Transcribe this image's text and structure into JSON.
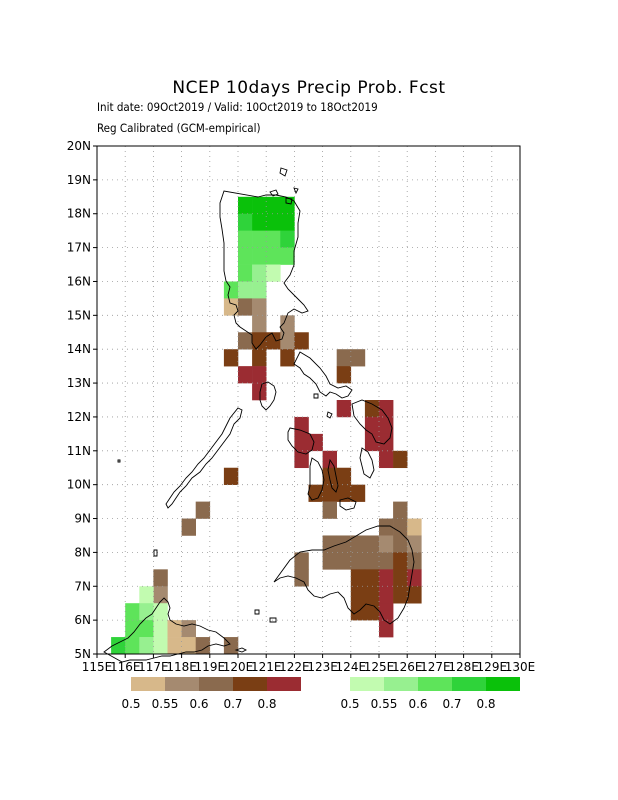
{
  "title": "NCEP 10days Precip Prob. Fcst",
  "subtitle_1": "Init date: 09Oct2019 / Valid: 10Oct2019 to 18Oct2019",
  "subtitle_2": "Reg Calibrated (GCM-empirical)",
  "axes": {
    "x_ticks": [
      "115E",
      "116E",
      "117E",
      "118E",
      "119E",
      "120E",
      "121E",
      "122E",
      "123E",
      "124E",
      "125E",
      "126E",
      "127E",
      "128E",
      "129E",
      "130E"
    ],
    "y_ticks": [
      "5N",
      "6N",
      "7N",
      "8N",
      "9N",
      "10N",
      "11N",
      "12N",
      "13N",
      "14N",
      "15N",
      "16N",
      "17N",
      "18N",
      "19N",
      "20N"
    ],
    "lon_range": [
      115,
      130
    ],
    "lat_range": [
      5,
      20
    ],
    "grid": "dotted"
  },
  "legend": {
    "dry": {
      "colors": [
        "#d7b88a",
        "#a58a70",
        "#8a6a4e",
        "#7a3e14",
        "#9b2c32"
      ],
      "labels": [
        "0.5",
        "0.55",
        "0.6",
        "0.7",
        "0.8"
      ]
    },
    "wet": {
      "colors": [
        "#c2fbb0",
        "#97f090",
        "#5ee45a",
        "#2fd33a",
        "#0ac10a"
      ],
      "labels": [
        "0.5",
        "0.55",
        "0.6",
        "0.7",
        "0.8"
      ]
    }
  },
  "cells": [
    {
      "lon": 120.0,
      "lat": 18.0,
      "cat": "w5"
    },
    {
      "lon": 120.5,
      "lat": 18.0,
      "cat": "w5"
    },
    {
      "lon": 121.0,
      "lat": 18.0,
      "cat": "w5"
    },
    {
      "lon": 121.5,
      "lat": 18.0,
      "cat": "w5"
    },
    {
      "lon": 120.0,
      "lat": 17.5,
      "cat": "w4"
    },
    {
      "lon": 120.5,
      "lat": 17.5,
      "cat": "w5"
    },
    {
      "lon": 121.0,
      "lat": 17.5,
      "cat": "w5"
    },
    {
      "lon": 121.5,
      "lat": 17.5,
      "cat": "w5"
    },
    {
      "lon": 120.0,
      "lat": 17.0,
      "cat": "w3"
    },
    {
      "lon": 120.5,
      "lat": 17.0,
      "cat": "w3"
    },
    {
      "lon": 121.0,
      "lat": 17.0,
      "cat": "w3"
    },
    {
      "lon": 121.5,
      "lat": 17.0,
      "cat": "w4"
    },
    {
      "lon": 120.0,
      "lat": 16.5,
      "cat": "w3"
    },
    {
      "lon": 120.5,
      "lat": 16.5,
      "cat": "w3"
    },
    {
      "lon": 121.0,
      "lat": 16.5,
      "cat": "w3"
    },
    {
      "lon": 121.5,
      "lat": 16.5,
      "cat": "w3"
    },
    {
      "lon": 120.0,
      "lat": 16.0,
      "cat": "w3"
    },
    {
      "lon": 120.5,
      "lat": 16.0,
      "cat": "w2"
    },
    {
      "lon": 121.0,
      "lat": 16.0,
      "cat": "w1"
    },
    {
      "lon": 119.5,
      "lat": 15.5,
      "cat": "w3"
    },
    {
      "lon": 120.0,
      "lat": 15.5,
      "cat": "w2"
    },
    {
      "lon": 120.5,
      "lat": 15.5,
      "cat": "w2"
    },
    {
      "lon": 119.5,
      "lat": 15.0,
      "cat": "d1"
    },
    {
      "lon": 120.0,
      "lat": 15.0,
      "cat": "d3"
    },
    {
      "lon": 120.5,
      "lat": 15.0,
      "cat": "d2"
    },
    {
      "lon": 120.5,
      "lat": 14.5,
      "cat": "d2"
    },
    {
      "lon": 121.5,
      "lat": 14.5,
      "cat": "d2"
    },
    {
      "lon": 120.0,
      "lat": 14.0,
      "cat": "d3"
    },
    {
      "lon": 120.5,
      "lat": 14.0,
      "cat": "d4"
    },
    {
      "lon": 121.0,
      "lat": 14.0,
      "cat": "d4"
    },
    {
      "lon": 121.5,
      "lat": 14.0,
      "cat": "d2"
    },
    {
      "lon": 122.0,
      "lat": 14.0,
      "cat": "d4"
    },
    {
      "lon": 119.5,
      "lat": 13.5,
      "cat": "d4"
    },
    {
      "lon": 120.5,
      "lat": 13.5,
      "cat": "d4"
    },
    {
      "lon": 121.5,
      "lat": 13.5,
      "cat": "d4"
    },
    {
      "lon": 123.5,
      "lat": 13.5,
      "cat": "d3"
    },
    {
      "lon": 124.0,
      "lat": 13.5,
      "cat": "d3"
    },
    {
      "lon": 120.0,
      "lat": 13.0,
      "cat": "d5"
    },
    {
      "lon": 120.5,
      "lat": 13.0,
      "cat": "d5"
    },
    {
      "lon": 123.5,
      "lat": 13.0,
      "cat": "d4"
    },
    {
      "lon": 120.5,
      "lat": 12.5,
      "cat": "d5"
    },
    {
      "lon": 123.5,
      "lat": 12.0,
      "cat": "d5"
    },
    {
      "lon": 124.5,
      "lat": 12.0,
      "cat": "d4"
    },
    {
      "lon": 125.0,
      "lat": 12.0,
      "cat": "d5"
    },
    {
      "lon": 122.0,
      "lat": 11.5,
      "cat": "d5"
    },
    {
      "lon": 124.5,
      "lat": 11.5,
      "cat": "d5"
    },
    {
      "lon": 125.0,
      "lat": 11.5,
      "cat": "d5"
    },
    {
      "lon": 122.0,
      "lat": 11.0,
      "cat": "d5"
    },
    {
      "lon": 122.5,
      "lat": 11.0,
      "cat": "d5"
    },
    {
      "lon": 124.5,
      "lat": 11.0,
      "cat": "d5"
    },
    {
      "lon": 125.0,
      "lat": 11.0,
      "cat": "d5"
    },
    {
      "lon": 122.0,
      "lat": 10.5,
      "cat": "d5"
    },
    {
      "lon": 123.0,
      "lat": 10.5,
      "cat": "d5"
    },
    {
      "lon": 125.0,
      "lat": 10.5,
      "cat": "d5"
    },
    {
      "lon": 125.5,
      "lat": 10.5,
      "cat": "d4"
    },
    {
      "lon": 123.0,
      "lat": 10.0,
      "cat": "d4"
    },
    {
      "lon": 123.5,
      "lat": 10.0,
      "cat": "d4"
    },
    {
      "lon": 119.5,
      "lat": 10.0,
      "cat": "d4"
    },
    {
      "lon": 122.5,
      "lat": 9.5,
      "cat": "d4"
    },
    {
      "lon": 123.0,
      "lat": 9.5,
      "cat": "d4"
    },
    {
      "lon": 123.5,
      "lat": 9.5,
      "cat": "d4"
    },
    {
      "lon": 124.0,
      "lat": 9.5,
      "cat": "d4"
    },
    {
      "lon": 118.5,
      "lat": 9.0,
      "cat": "d3"
    },
    {
      "lon": 123.0,
      "lat": 9.0,
      "cat": "d3"
    },
    {
      "lon": 125.5,
      "lat": 9.0,
      "cat": "d3"
    },
    {
      "lon": 118.0,
      "lat": 8.5,
      "cat": "d3"
    },
    {
      "lon": 125.0,
      "lat": 8.5,
      "cat": "d3"
    },
    {
      "lon": 125.5,
      "lat": 8.5,
      "cat": "d3"
    },
    {
      "lon": 126.0,
      "lat": 8.5,
      "cat": "d1"
    },
    {
      "lon": 123.0,
      "lat": 8.0,
      "cat": "d3"
    },
    {
      "lon": 123.5,
      "lat": 8.0,
      "cat": "d3"
    },
    {
      "lon": 124.0,
      "lat": 8.0,
      "cat": "d3"
    },
    {
      "lon": 124.5,
      "lat": 8.0,
      "cat": "d3"
    },
    {
      "lon": 125.0,
      "lat": 8.0,
      "cat": "d2"
    },
    {
      "lon": 125.5,
      "lat": 8.0,
      "cat": "d3"
    },
    {
      "lon": 126.0,
      "lat": 8.0,
      "cat": "d2"
    },
    {
      "lon": 122.0,
      "lat": 7.5,
      "cat": "d3"
    },
    {
      "lon": 123.0,
      "lat": 7.5,
      "cat": "d3"
    },
    {
      "lon": 123.5,
      "lat": 7.5,
      "cat": "d3"
    },
    {
      "lon": 124.0,
      "lat": 7.5,
      "cat": "d3"
    },
    {
      "lon": 124.5,
      "lat": 7.5,
      "cat": "d3"
    },
    {
      "lon": 125.0,
      "lat": 7.5,
      "cat": "d3"
    },
    {
      "lon": 125.5,
      "lat": 7.5,
      "cat": "d4"
    },
    {
      "lon": 126.0,
      "lat": 7.5,
      "cat": "d3"
    },
    {
      "lon": 122.0,
      "lat": 7.0,
      "cat": "d3"
    },
    {
      "lon": 124.0,
      "lat": 7.0,
      "cat": "d4"
    },
    {
      "lon": 124.5,
      "lat": 7.0,
      "cat": "d4"
    },
    {
      "lon": 125.0,
      "lat": 7.0,
      "cat": "d5"
    },
    {
      "lon": 125.5,
      "lat": 7.0,
      "cat": "d4"
    },
    {
      "lon": 126.0,
      "lat": 7.0,
      "cat": "d5"
    },
    {
      "lon": 124.0,
      "lat": 6.5,
      "cat": "d4"
    },
    {
      "lon": 124.5,
      "lat": 6.5,
      "cat": "d4"
    },
    {
      "lon": 125.0,
      "lat": 6.5,
      "cat": "d5"
    },
    {
      "lon": 125.5,
      "lat": 6.5,
      "cat": "d4"
    },
    {
      "lon": 126.0,
      "lat": 6.5,
      "cat": "d4"
    },
    {
      "lon": 124.0,
      "lat": 6.0,
      "cat": "d4"
    },
    {
      "lon": 124.5,
      "lat": 6.0,
      "cat": "d4"
    },
    {
      "lon": 125.0,
      "lat": 6.0,
      "cat": "d5"
    },
    {
      "lon": 125.0,
      "lat": 5.5,
      "cat": "d5"
    },
    {
      "lon": 117.0,
      "lat": 7.0,
      "cat": "d3"
    },
    {
      "lon": 117.0,
      "lat": 6.5,
      "cat": "d2"
    },
    {
      "lon": 116.5,
      "lat": 6.5,
      "cat": "w1"
    },
    {
      "lon": 116.0,
      "lat": 6.0,
      "cat": "w3"
    },
    {
      "lon": 116.5,
      "lat": 6.0,
      "cat": "w2"
    },
    {
      "lon": 117.0,
      "lat": 6.0,
      "cat": "w1"
    },
    {
      "lon": 116.0,
      "lat": 5.5,
      "cat": "w3"
    },
    {
      "lon": 116.5,
      "lat": 5.5,
      "cat": "w3"
    },
    {
      "lon": 117.0,
      "lat": 5.5,
      "cat": "w1"
    },
    {
      "lon": 117.5,
      "lat": 5.5,
      "cat": "d1"
    },
    {
      "lon": 118.0,
      "lat": 5.5,
      "cat": "d2"
    },
    {
      "lon": 115.5,
      "lat": 5.0,
      "cat": "w4"
    },
    {
      "lon": 116.0,
      "lat": 5.0,
      "cat": "w3"
    },
    {
      "lon": 116.5,
      "lat": 5.0,
      "cat": "w2"
    },
    {
      "lon": 117.0,
      "lat": 5.0,
      "cat": "w1"
    },
    {
      "lon": 117.5,
      "lat": 5.0,
      "cat": "d1"
    },
    {
      "lon": 118.0,
      "lat": 5.0,
      "cat": "d1"
    },
    {
      "lon": 118.5,
      "lat": 5.0,
      "cat": "d3"
    },
    {
      "lon": 119.5,
      "lat": 5.0,
      "cat": "d3"
    }
  ]
}
